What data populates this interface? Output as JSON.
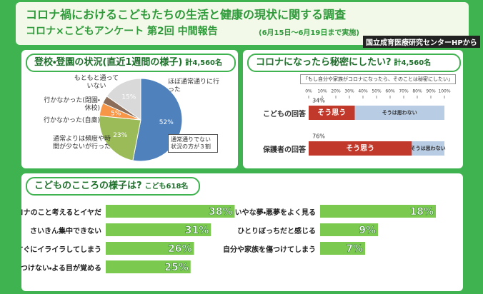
{
  "header": {
    "title": "コロナ禍におけるこどもたちの生活と健康の現状に関する調査",
    "subtitle": "コロナ×こどもアンケート 第2回 中間報告",
    "period": "(6月15日～6月19日まで実施)",
    "source": "国立成育医療研究センターHPから"
  },
  "chart_data": [
    {
      "type": "pie",
      "title": "登校・登園の状況(直近1週間の様子)",
      "subtitle": "計4,560名",
      "categories": [
        "ほぼ通常通りに行った",
        "通常よりは頻度や時間が少ないが行った",
        "行かなかった(自粛)",
        "行かなかった(閉園・休校)",
        "もともと通っていない"
      ],
      "values": [
        52,
        23,
        5,
        3,
        15
      ],
      "value_labels": [
        "52%",
        "23%",
        "5%",
        null,
        "15%"
      ],
      "colors": [
        "#4f81bd",
        "#9bbb59",
        "#f79646",
        "#8c6d5a",
        "#d9d9d9"
      ],
      "annotation": "通常通りでない状況の方が３割"
    },
    {
      "type": "bar",
      "orientation": "horizontal",
      "stacked": true,
      "title": "コロナになったら秘密にしたい?",
      "subtitle": "計4,560名",
      "question": "「もし自分や家族がコロナになったら、そのことは秘密にしたい」",
      "categories": [
        "こどもの回答",
        "保護者の回答"
      ],
      "series": [
        {
          "name": "そう思う",
          "color": "#c0392b",
          "values": [
            34,
            76
          ],
          "value_labels": [
            "34%",
            "76%"
          ]
        },
        {
          "name": "そうは思わない",
          "color": "#b8cce4",
          "values": [
            66,
            24
          ]
        }
      ],
      "xlim": [
        0,
        100
      ],
      "xticks": [
        {
          "value": 0,
          "label": "0%"
        },
        {
          "value": 10,
          "label": "10%"
        },
        {
          "value": 20,
          "label": "20%"
        },
        {
          "value": 30,
          "label": "30%"
        },
        {
          "value": 40,
          "label": "40%"
        },
        {
          "value": 50,
          "label": "50%"
        },
        {
          "value": 60,
          "label": "60%"
        },
        {
          "value": 70,
          "label": "70%"
        },
        {
          "value": 80,
          "label": "80%"
        },
        {
          "value": 90,
          "label": "90%"
        },
        {
          "value": 100,
          "label": "100%"
        }
      ]
    },
    {
      "type": "bar",
      "orientation": "horizontal",
      "title": "こどものこころの様子は?",
      "subtitle": "こども618名",
      "categories": [
        "コロナのこと考えるとイヤだ",
        "さいきん集中できない",
        "すぐにイライラしてしまう",
        "寝つけない・よる目が覚める"
      ],
      "values": [
        38,
        31,
        26,
        25
      ],
      "value_labels": [
        "38%",
        "31%",
        "26%",
        "25%"
      ],
      "color": "#7cc94f",
      "xlim": [
        0,
        40
      ]
    },
    {
      "type": "bar",
      "orientation": "horizontal",
      "categories": [
        "いやな夢・悪夢をよく見る",
        "ひとりぼっちだと感じる",
        "自分や家族を傷つけてしまう"
      ],
      "values": [
        18,
        9,
        7
      ],
      "value_labels": [
        "18%",
        "9%",
        "7%"
      ],
      "color": "#7cc94f",
      "xlim": [
        0,
        20
      ]
    }
  ]
}
